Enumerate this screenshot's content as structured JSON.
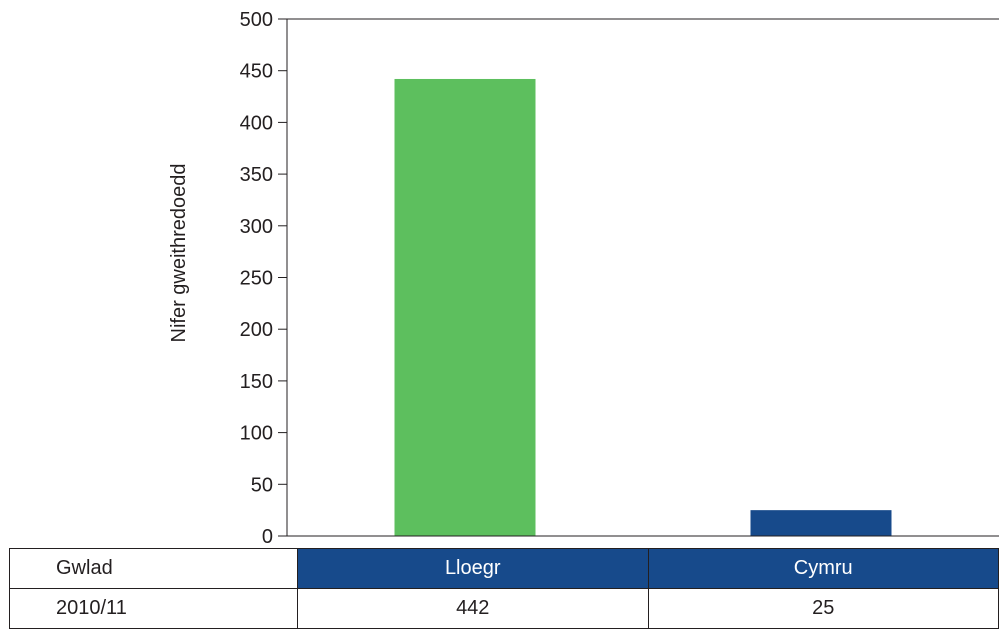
{
  "chart_data": {
    "type": "bar",
    "categories": [
      "Lloegr",
      "Cymru"
    ],
    "values": [
      442,
      25
    ],
    "bar_colors": [
      "#5dbf5e",
      "#174a8b"
    ],
    "xlabel": "",
    "ylabel": "Nifer gweithredoedd",
    "ylim": [
      0,
      500
    ],
    "yticks": [
      0,
      50,
      100,
      150,
      200,
      250,
      300,
      350,
      400,
      450,
      500
    ],
    "grid": false,
    "legend": "none"
  },
  "table": {
    "header_label": "Gwlad",
    "row_label": "2010/11",
    "header_color": "#174a8b"
  }
}
